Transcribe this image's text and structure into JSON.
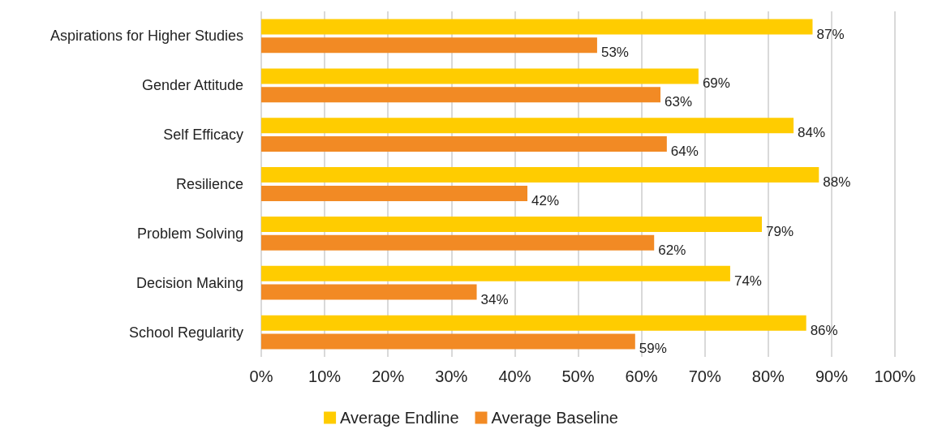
{
  "chart_data": {
    "type": "bar",
    "orientation": "horizontal",
    "categories": [
      "Aspirations for Higher Studies",
      "Gender Attitude",
      "Self Efficacy",
      "Resilience",
      "Problem Solving",
      "Decision Making",
      "School Regularity"
    ],
    "series": [
      {
        "name": "Average Endline",
        "color": "#ffcc00",
        "values": [
          87,
          69,
          84,
          88,
          79,
          74,
          86
        ],
        "value_labels": [
          "87%",
          "69%",
          "84%",
          "88%",
          "79%",
          "74%",
          "86%"
        ]
      },
      {
        "name": "Average Baseline",
        "color": "#f28a24",
        "values": [
          53,
          63,
          64,
          42,
          62,
          34,
          59
        ],
        "value_labels": [
          "53%",
          "63%",
          "64%",
          "42%",
          "62%",
          "34%",
          "59%"
        ]
      }
    ],
    "xlim": [
      0,
      100
    ],
    "xticks": [
      {
        "value": 0,
        "label": "0%"
      },
      {
        "value": 10,
        "label": "10%"
      },
      {
        "value": 20,
        "label": "20%"
      },
      {
        "value": 30,
        "label": "30%"
      },
      {
        "value": 40,
        "label": "40%"
      },
      {
        "value": 50,
        "label": "50%"
      },
      {
        "value": 60,
        "label": "60%"
      },
      {
        "value": 70,
        "label": "70%"
      },
      {
        "value": 80,
        "label": "80%"
      },
      {
        "value": 90,
        "label": "90%"
      },
      {
        "value": 100,
        "label": "100%"
      }
    ],
    "grid": "x",
    "legend": "bottom"
  }
}
